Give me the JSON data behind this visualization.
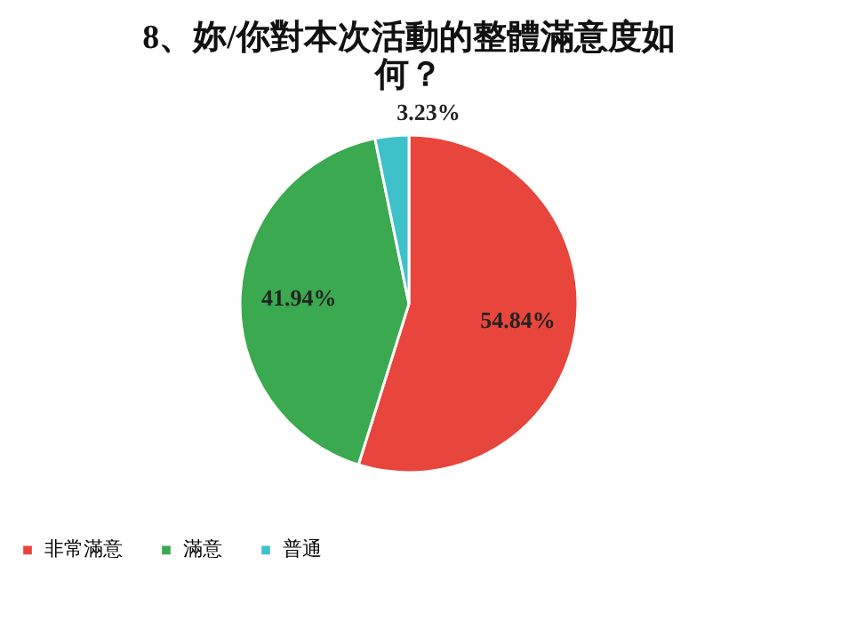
{
  "chart_data": {
    "type": "pie",
    "title": "8、妳/你對本次活動的整體滿意度如何？",
    "categories": [
      "非常滿意",
      "滿意",
      "普通"
    ],
    "values": [
      54.84,
      41.94,
      3.23
    ],
    "colors": [
      "#e8453c",
      "#3aa94f",
      "#3fc1c9"
    ],
    "value_labels": [
      "54.84%",
      "41.94%",
      "3.23%"
    ],
    "legend": "bottom"
  }
}
